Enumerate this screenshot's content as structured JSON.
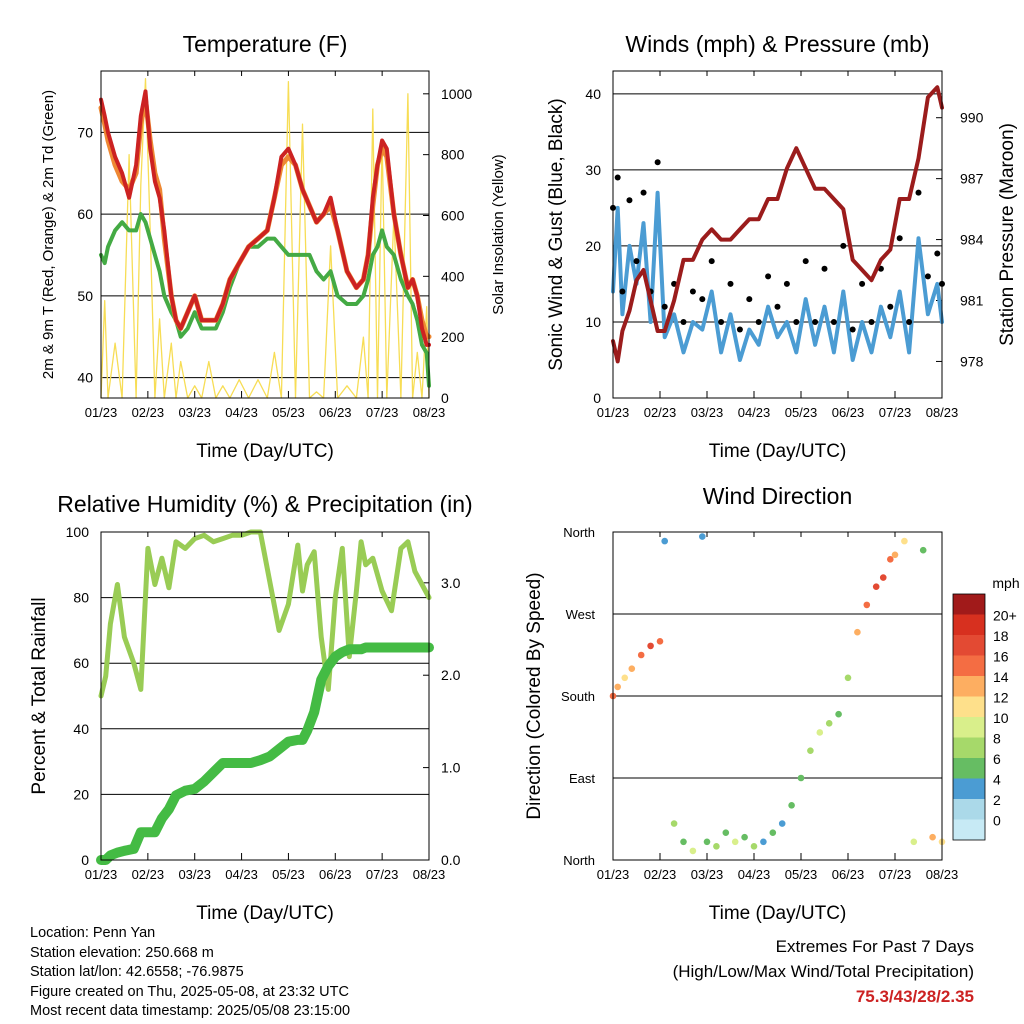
{
  "x_ticks": [
    "01/23",
    "02/23",
    "03/23",
    "04/23",
    "05/23",
    "06/23",
    "07/23",
    "08/23"
  ],
  "colors": {
    "red": "#cc2222",
    "orange": "#ee8833",
    "green": "#44aa44",
    "yellow": "#f7dd55",
    "blue": "#4b9cd3",
    "black": "#000000",
    "maroon": "#9b1c1c",
    "rh": "#99cc55",
    "rain": "#44bb44"
  },
  "wind_scale": {
    "title": "mph",
    "labels": [
      "20+",
      "18",
      "16",
      "14",
      "12",
      "10",
      "8",
      "6",
      "4",
      "2",
      "0"
    ],
    "colors": [
      "#a11a1a",
      "#d7301f",
      "#e34a33",
      "#f46d43",
      "#fdae61",
      "#fee08b",
      "#d9ef8b",
      "#a6d96a",
      "#66bd63",
      "#4b9cd3",
      "#abd9e9",
      "#c7eaf5"
    ]
  },
  "info": {
    "location": "Location: Penn Yan",
    "elevation": "Station elevation: 250.668 m",
    "latlon": "Station lat/lon: 42.6558; -76.9875",
    "created": "Figure created on Thu, 2025-05-08, at 23:32 UTC",
    "recent": "Most recent data timestamp: 2025/05/08 23:15:00"
  },
  "extremes": {
    "line1": "Extremes For Past 7 Days",
    "line2": "(High/Low/Max Wind/Total Precipitation)",
    "values": "75.3/43/28/2.35"
  },
  "chart_data": [
    {
      "type": "line",
      "title": "Temperature (F)",
      "xlabel": "Time (Day/UTC)",
      "ylabel": "2m & 9m T (Red, Orange) & 2m Td (Green)",
      "ylabel_right": "Solar Insolation (Yellow)",
      "ylim": [
        37.5,
        77.5
      ],
      "y2lim": [
        0,
        1075
      ],
      "yticks": [
        40,
        50,
        60,
        70
      ],
      "y2ticks": [
        0,
        200,
        400,
        600,
        800,
        1000
      ],
      "x": [
        0,
        0.08,
        0.15,
        0.3,
        0.45,
        0.6,
        0.75,
        0.85,
        0.95,
        1.05,
        1.15,
        1.25,
        1.35,
        1.5,
        1.6,
        1.7,
        1.85,
        2.0,
        2.15,
        2.3,
        2.45,
        2.6,
        2.75,
        2.95,
        3.15,
        3.35,
        3.55,
        3.7,
        3.85,
        4.0,
        4.15,
        4.3,
        4.45,
        4.6,
        4.75,
        4.9,
        5.05,
        5.25,
        5.45,
        5.6,
        5.7,
        5.8,
        5.9,
        6.0,
        6.1,
        6.25,
        6.4,
        6.55,
        6.65,
        6.75,
        6.85,
        6.95,
        7.0
      ],
      "series": [
        {
          "name": "2m T",
          "y": [
            74,
            72,
            70,
            67,
            65,
            62,
            66,
            72,
            75,
            68,
            64,
            62,
            58,
            50,
            47,
            46,
            48,
            50,
            47,
            47,
            47,
            49,
            52,
            54,
            56,
            57,
            58,
            62,
            67,
            68,
            66,
            63,
            61,
            59,
            60,
            62,
            58,
            53,
            51,
            52,
            55,
            62,
            66,
            69,
            68,
            60,
            55,
            51,
            52,
            50,
            46,
            44,
            44
          ]
        },
        {
          "name": "9m T",
          "y": [
            73,
            71,
            69,
            66,
            64,
            63,
            65,
            71,
            74,
            69,
            65,
            63,
            57,
            50,
            47,
            46,
            48,
            50,
            47,
            47,
            47,
            49,
            52,
            54,
            56,
            57,
            58,
            62,
            66,
            67,
            66,
            63,
            61,
            59,
            60,
            61,
            58,
            53,
            51,
            52,
            55,
            61,
            66,
            68,
            67,
            60,
            55,
            51,
            52,
            50,
            47,
            45,
            45
          ]
        },
        {
          "name": "2m Td",
          "y": [
            55,
            54,
            56,
            58,
            59,
            58,
            58,
            60,
            59,
            57,
            55,
            53,
            50,
            48,
            47,
            45,
            46,
            48,
            46,
            46,
            46,
            48,
            51,
            54,
            56,
            56,
            57,
            57,
            56,
            55,
            55,
            55,
            55,
            53,
            52,
            53,
            50,
            49,
            49,
            50,
            52,
            55,
            56,
            58,
            56,
            55,
            52,
            50,
            49,
            47,
            44,
            43,
            39
          ]
        },
        {
          "name": "Solar",
          "y": [
            0,
            320,
            0,
            180,
            0,
            800,
            0,
            700,
            1050,
            550,
            0,
            260,
            0,
            180,
            0,
            120,
            0,
            40,
            0,
            120,
            0,
            40,
            0,
            60,
            0,
            60,
            0,
            150,
            0,
            1040,
            0,
            900,
            0,
            20,
            0,
            500,
            0,
            40,
            0,
            200,
            0,
            950,
            0,
            850,
            0,
            600,
            0,
            1000,
            0,
            150,
            0,
            300,
            0
          ]
        }
      ]
    },
    {
      "type": "line",
      "title": "Winds (mph) & Pressure (mb)",
      "xlabel": "Time (Day/UTC)",
      "ylabel": "Sonic Wind & Gust (Blue, Black)",
      "ylabel_right": "Station Pressure (Maroon)",
      "ylim": [
        0,
        43
      ],
      "y2lim": [
        976.2,
        992.3
      ],
      "yticks": [
        0,
        10,
        20,
        30,
        40
      ],
      "y2ticks": [
        978,
        981,
        984,
        987,
        990
      ],
      "x": [
        0,
        0.1,
        0.2,
        0.35,
        0.5,
        0.65,
        0.8,
        0.95,
        1.1,
        1.3,
        1.5,
        1.7,
        1.9,
        2.1,
        2.3,
        2.5,
        2.7,
        2.9,
        3.1,
        3.3,
        3.5,
        3.7,
        3.9,
        4.1,
        4.3,
        4.5,
        4.7,
        4.9,
        5.1,
        5.3,
        5.5,
        5.7,
        5.9,
        6.1,
        6.3,
        6.5,
        6.7,
        6.9,
        7.0
      ],
      "series": [
        {
          "name": "Wind",
          "y": [
            14,
            25,
            11,
            20,
            15,
            23,
            10,
            27,
            8,
            11,
            6,
            10,
            9,
            14,
            6,
            11,
            5,
            9,
            7,
            12,
            8,
            10,
            6,
            13,
            7,
            12,
            6,
            14,
            5,
            10,
            6,
            12,
            8,
            14,
            6,
            21,
            11,
            15,
            10
          ]
        },
        {
          "name": "Gust",
          "y": [
            25,
            29,
            14,
            26,
            18,
            27,
            14,
            31,
            12,
            15,
            10,
            14,
            13,
            18,
            10,
            15,
            9,
            13,
            10,
            16,
            12,
            15,
            10,
            18,
            10,
            17,
            10,
            20,
            9,
            15,
            10,
            17,
            12,
            21,
            10,
            27,
            16,
            19,
            15
          ]
        },
        {
          "name": "Pressure",
          "y": [
            979,
            978,
            979.5,
            980.5,
            982,
            982.5,
            981,
            979.5,
            979.5,
            981,
            983,
            983,
            984,
            984.5,
            984,
            984,
            984.5,
            985,
            985,
            986,
            986,
            987.5,
            988.5,
            987.5,
            986.5,
            986.5,
            986,
            985.5,
            983,
            982.5,
            982,
            983,
            983.5,
            986,
            986,
            988,
            991,
            991.5,
            990.5
          ]
        }
      ]
    },
    {
      "type": "line",
      "title": "Relative Humidity (%) & Precipitation (in)",
      "xlabel": "Time (Day/UTC)",
      "ylabel": "Percent & Total Rainfall",
      "ylim": [
        0,
        100
      ],
      "y2lim": [
        0,
        3.55
      ],
      "yticks": [
        0,
        20,
        40,
        60,
        80,
        100
      ],
      "y2ticks": [
        0.0,
        1.0,
        2.0,
        3.0
      ],
      "x": [
        0,
        0.1,
        0.2,
        0.35,
        0.5,
        0.7,
        0.85,
        1.0,
        1.15,
        1.3,
        1.45,
        1.6,
        1.8,
        2.0,
        2.2,
        2.4,
        2.6,
        2.8,
        3.0,
        3.2,
        3.4,
        3.6,
        3.8,
        4.0,
        4.2,
        4.3,
        4.4,
        4.55,
        4.7,
        4.85,
        5.0,
        5.15,
        5.3,
        5.45,
        5.55,
        5.65,
        5.8,
        6.0,
        6.2,
        6.4,
        6.55,
        6.7,
        6.85,
        7.0
      ],
      "series": [
        {
          "name": "RH",
          "y": [
            50,
            56,
            72,
            84,
            68,
            60,
            52,
            95,
            84,
            92,
            83,
            97,
            95,
            98,
            99,
            97,
            98,
            99,
            99,
            100,
            100,
            85,
            70,
            78,
            96,
            82,
            90,
            94,
            68,
            52,
            80,
            95,
            62,
            82,
            97,
            90,
            92,
            82,
            76,
            95,
            97,
            88,
            84,
            80
          ]
        },
        {
          "name": "Total Rainfall",
          "y": [
            0,
            0,
            0.05,
            0.08,
            0.1,
            0.12,
            0.3,
            0.3,
            0.3,
            0.45,
            0.55,
            0.7,
            0.75,
            0.77,
            0.85,
            0.95,
            1.05,
            1.05,
            1.05,
            1.05,
            1.08,
            1.12,
            1.2,
            1.28,
            1.3,
            1.3,
            1.4,
            1.6,
            1.95,
            2.1,
            2.2,
            2.25,
            2.28,
            2.28,
            2.28,
            2.3,
            2.3,
            2.3,
            2.3,
            2.3,
            2.3,
            2.3,
            2.3,
            2.3
          ]
        }
      ]
    },
    {
      "type": "scatter",
      "title": "Wind Direction",
      "xlabel": "Time (Day/UTC)",
      "ylabel": "Direction (Colored By Speed)",
      "yticks": [
        "North",
        "East",
        "South",
        "West",
        "North"
      ],
      "ylim": [
        0,
        360
      ],
      "x": [
        0,
        0.1,
        0.25,
        0.4,
        0.6,
        0.8,
        1.0,
        1.1,
        1.3,
        1.5,
        1.7,
        1.9,
        2.0,
        2.2,
        2.4,
        2.6,
        2.8,
        3.0,
        3.2,
        3.4,
        3.6,
        3.8,
        4.0,
        4.2,
        4.4,
        4.6,
        4.8,
        5.0,
        5.2,
        5.4,
        5.6,
        5.75,
        5.9,
        6.0,
        6.2,
        6.4,
        6.6,
        6.8,
        7.0
      ],
      "series": [
        {
          "name": "Direction",
          "y": [
            180,
            190,
            200,
            210,
            225,
            235,
            240,
            350,
            40,
            20,
            10,
            355,
            20,
            15,
            30,
            20,
            25,
            15,
            20,
            30,
            40,
            60,
            90,
            120,
            140,
            150,
            160,
            200,
            250,
            280,
            300,
            310,
            330,
            335,
            350,
            20,
            340,
            25,
            20
          ]
        },
        {
          "name": "Speed",
          "y": [
            16,
            14,
            12,
            14,
            16,
            18,
            16,
            4,
            8,
            6,
            10,
            4,
            6,
            8,
            6,
            10,
            6,
            8,
            4,
            6,
            4,
            6,
            6,
            8,
            10,
            8,
            6,
            8,
            14,
            16,
            18,
            18,
            16,
            14,
            12,
            10,
            6,
            14,
            12
          ]
        }
      ]
    }
  ]
}
